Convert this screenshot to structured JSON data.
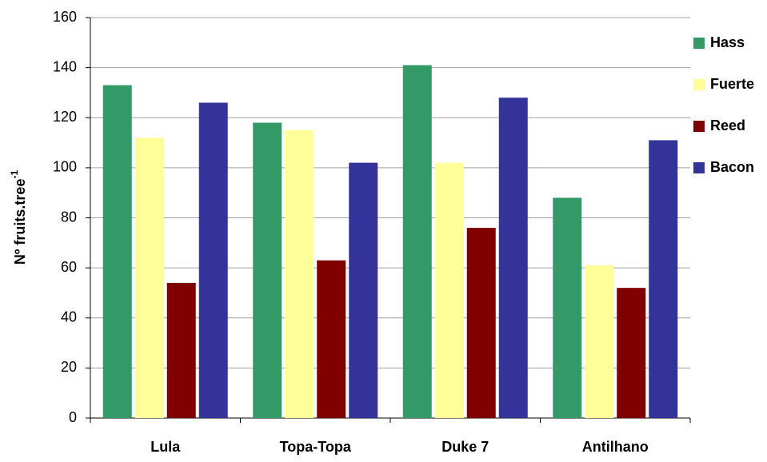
{
  "chart_data": {
    "type": "bar",
    "y_label": "Nº fruits.tree",
    "y_label_sup": "-1",
    "categories": [
      "Lula",
      "Topa-Topa",
      "Duke 7",
      "Antilhano"
    ],
    "series": [
      {
        "name": "Hass",
        "color": "#339966",
        "values": [
          133,
          118,
          141,
          88
        ]
      },
      {
        "name": "Fuerte",
        "color": "#ffff99",
        "values": [
          112,
          115,
          102,
          61
        ]
      },
      {
        "name": "Reed",
        "color": "#800000",
        "values": [
          54,
          63,
          76,
          52
        ]
      },
      {
        "name": "Bacon",
        "color": "#333399",
        "values": [
          126,
          102,
          128,
          111
        ]
      }
    ],
    "ylim": [
      0,
      160
    ],
    "yticks": [
      0,
      20,
      40,
      60,
      80,
      100,
      120,
      140,
      160
    ],
    "grid": true,
    "legend": "right"
  }
}
